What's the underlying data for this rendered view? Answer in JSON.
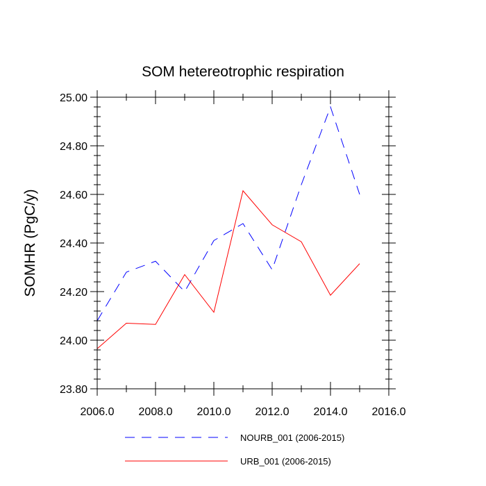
{
  "chart_data": {
    "type": "line",
    "title": "SOM hetereotrophic respiration",
    "xlabel": "",
    "ylabel": "SOMHR  (PgC/y)",
    "xlim": [
      2006,
      2016
    ],
    "ylim": [
      23.8,
      25.0
    ],
    "x_ticks": [
      2006,
      2008,
      2010,
      2012,
      2014,
      2016
    ],
    "x_tick_labels": [
      "2006.0",
      "2008.0",
      "2010.0",
      "2012.0",
      "2014.0",
      "2016.0"
    ],
    "y_ticks": [
      23.8,
      24.0,
      24.2,
      24.4,
      24.6,
      24.8,
      25.0
    ],
    "y_tick_labels": [
      "23.80",
      "24.00",
      "24.20",
      "24.40",
      "24.60",
      "24.80",
      "25.00"
    ],
    "legend_position": "bottom",
    "series": [
      {
        "name": "NOURB_001 (2006-2015)",
        "color": "#0000ff",
        "style": "dashed",
        "x": [
          2006,
          2007,
          2008,
          2009,
          2010,
          2011,
          2012,
          2013,
          2014,
          2015
        ],
        "values": [
          24.08,
          24.28,
          24.325,
          24.2,
          24.41,
          24.48,
          24.29,
          24.64,
          24.96,
          24.6
        ]
      },
      {
        "name": "URB_001 (2006-2015)",
        "color": "#ff0000",
        "style": "solid",
        "x": [
          2006,
          2007,
          2008,
          2009,
          2010,
          2011,
          2012,
          2013,
          2014,
          2015
        ],
        "values": [
          23.965,
          24.07,
          24.065,
          24.27,
          24.115,
          24.615,
          24.475,
          24.405,
          24.185,
          24.315
        ]
      }
    ]
  }
}
